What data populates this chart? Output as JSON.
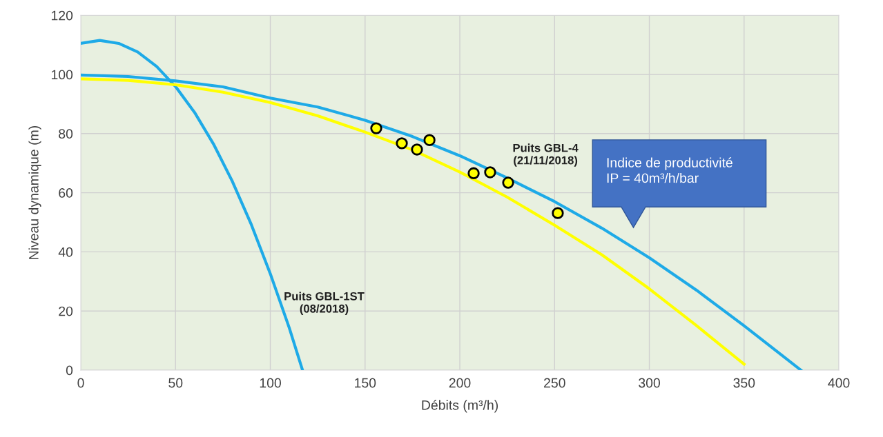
{
  "chart_data": {
    "type": "line",
    "xlabel": "Débits (m³/h)",
    "ylabel": "Niveau dynamique (m)",
    "xlim": [
      0,
      400
    ],
    "xticks": [
      0,
      50,
      100,
      150,
      200,
      250,
      300,
      350,
      400
    ],
    "ylim": [
      0,
      120
    ],
    "yticks": [
      0,
      20,
      40,
      60,
      80,
      100,
      120
    ],
    "grid": true,
    "legend": false,
    "series": [
      {
        "color": "#1eaae7",
        "x": [
          0,
          10,
          20,
          30,
          40,
          50,
          60,
          70,
          80,
          90,
          100,
          110,
          117
        ],
        "values": [
          110.5,
          111.5,
          110.5,
          107.6,
          102.7,
          95.9,
          87.2,
          76.5,
          63.8,
          49.2,
          32.6,
          14.3,
          0
        ]
      },
      {
        "color": "#1eaae7",
        "x": [
          0,
          25,
          50,
          75,
          100,
          125,
          150,
          175,
          200,
          225,
          250,
          275,
          300,
          325,
          350,
          380
        ],
        "values": [
          99.8,
          99.3,
          97.8,
          95.8,
          92,
          89,
          84.5,
          79,
          72.5,
          65,
          57,
          48,
          38,
          27,
          15,
          0
        ]
      },
      {
        "color": "#ffff00",
        "x": [
          0,
          25,
          50,
          75,
          100,
          125,
          150,
          175,
          200,
          225,
          250,
          275,
          300,
          325,
          350
        ],
        "values": [
          98.5,
          98,
          96.5,
          94,
          90.5,
          86,
          80.5,
          74.5,
          67,
          58.5,
          49,
          39,
          27.5,
          15,
          2
        ]
      },
      {
        "type": "scatter",
        "color": "#ffff00",
        "marker": "circle",
        "x": [
          155.9,
          169.4,
          177.4,
          184,
          207.3,
          216,
          225.5,
          251.7
        ],
        "values": [
          81.8,
          76.7,
          74.6,
          77.8,
          66.6,
          66.9,
          63.4,
          53.1
        ]
      }
    ],
    "annotations": [
      "Puits GBL-1ST\n(08/2018)",
      "Puits GBL-4\n(21/11/2018)",
      "Indice de productivité\nIP = 40m³/h/bar"
    ]
  }
}
